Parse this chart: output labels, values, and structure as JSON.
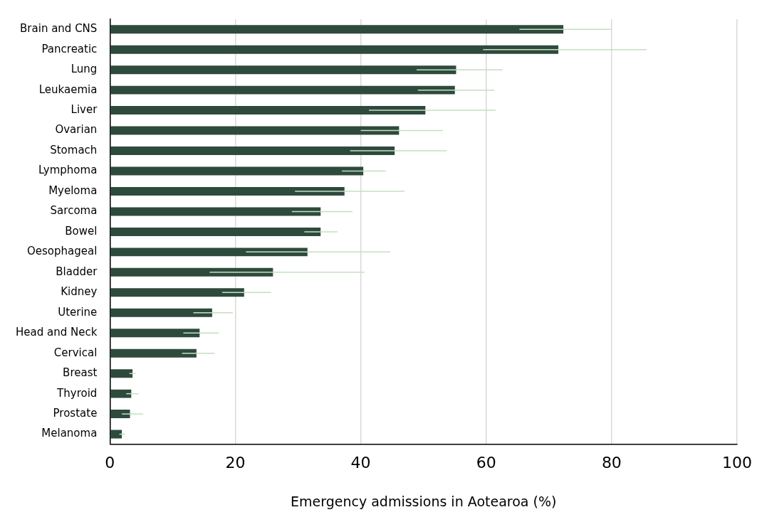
{
  "chart_data": {
    "type": "bar",
    "orientation": "horizontal",
    "xlabel": "Emergency admissions in Aotearoa (%)",
    "categories": [
      "Brain and CNS",
      "Pancreatic",
      "Lung",
      "Leukaemia",
      "Liver",
      "Ovarian",
      "Stomach",
      "Lymphoma",
      "Myeloma",
      "Sarcoma",
      "Bowel",
      "Oesophageal",
      "Bladder",
      "Kidney",
      "Uterine",
      "Head and Neck",
      "Cervical",
      "Breast",
      "Thyroid",
      "Prostate",
      "Melanoma"
    ],
    "values": [
      72.3,
      71.5,
      55.2,
      55.0,
      50.3,
      46.1,
      45.4,
      40.4,
      37.4,
      33.6,
      33.6,
      31.5,
      26.0,
      21.4,
      16.3,
      14.3,
      13.8,
      3.6,
      3.4,
      3.2,
      1.9
    ],
    "errors": [
      [
        65.3,
        79.9
      ],
      [
        59.5,
        85.6
      ],
      [
        48.9,
        62.6
      ],
      [
        49.1,
        61.3
      ],
      [
        41.3,
        61.5
      ],
      [
        40.0,
        53.1
      ],
      [
        38.3,
        53.7
      ],
      [
        37.0,
        44.0
      ],
      [
        29.5,
        47.0
      ],
      [
        29.0,
        38.7
      ],
      [
        31.0,
        36.3
      ],
      [
        21.7,
        44.7
      ],
      [
        15.9,
        40.6
      ],
      [
        17.9,
        25.7
      ],
      [
        13.3,
        19.6
      ],
      [
        11.7,
        17.4
      ],
      [
        11.5,
        16.7
      ],
      [
        3.1,
        4.1
      ],
      [
        2.6,
        4.6
      ],
      [
        1.9,
        5.3
      ],
      [
        1.5,
        2.4
      ]
    ],
    "color": "#2e4a3d",
    "xlim": [
      0,
      100
    ],
    "xticks": [
      0,
      20,
      40,
      60,
      80,
      100
    ],
    "grid": "x",
    "legend": false
  }
}
